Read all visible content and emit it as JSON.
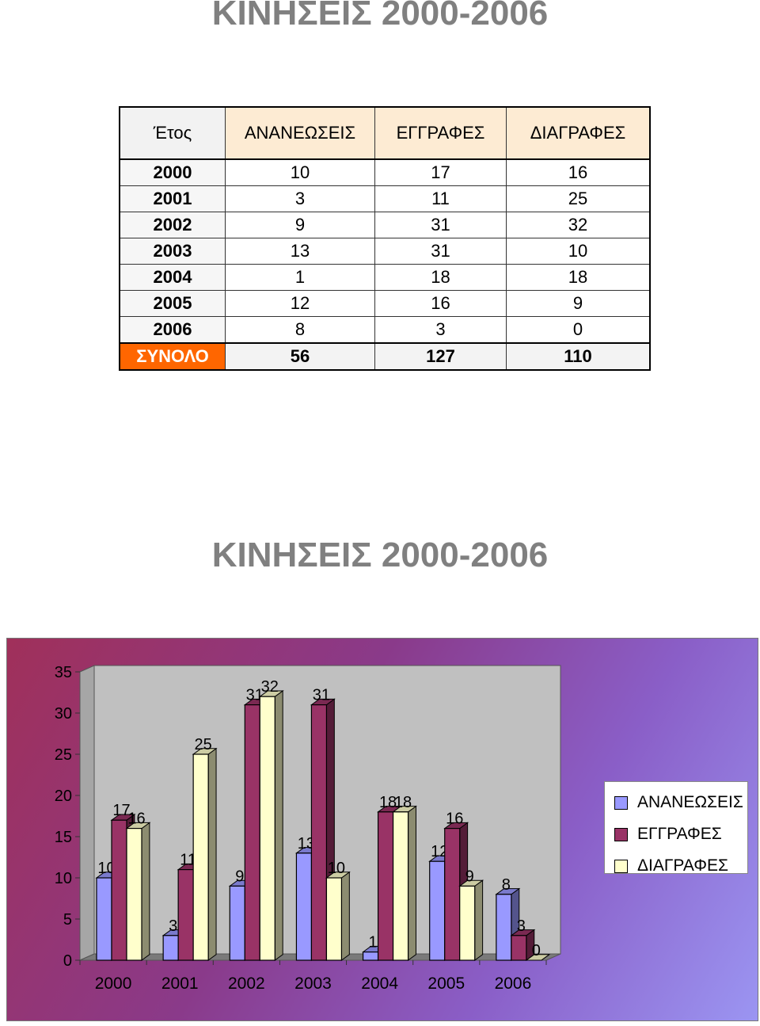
{
  "title_top": "ΚΙΝΗΣΕΙΣ 2000-2006",
  "table": {
    "headers": [
      "Έτος",
      "ΑΝΑΝΕΩΣΕΙΣ",
      "ΕΓΓΡΑΦΕΣ",
      "ΔΙΑΓΡΑΦΕΣ"
    ],
    "rows": [
      [
        "2000",
        "10",
        "17",
        "16"
      ],
      [
        "2001",
        "3",
        "11",
        "25"
      ],
      [
        "2002",
        "9",
        "31",
        "32"
      ],
      [
        "2003",
        "13",
        "31",
        "10"
      ],
      [
        "2004",
        "1",
        "18",
        "18"
      ],
      [
        "2005",
        "12",
        "16",
        "9"
      ],
      [
        "2006",
        "8",
        "3",
        "0"
      ]
    ],
    "total": [
      "ΣΥΝΟΛΟ",
      "56",
      "127",
      "110"
    ]
  },
  "chart_data": {
    "type": "bar",
    "title": "ΚΙΝΗΣΕΙΣ 2000-2006",
    "categories": [
      "2000",
      "2001",
      "2002",
      "2003",
      "2004",
      "2005",
      "2006"
    ],
    "series": [
      {
        "name": "ΑΝΑΝΕΩΣΕΙΣ",
        "values": [
          10,
          3,
          9,
          13,
          1,
          12,
          8
        ],
        "color": "#9999ff"
      },
      {
        "name": "ΕΓΓΡΑΦΕΣ",
        "values": [
          17,
          11,
          31,
          31,
          18,
          16,
          3
        ],
        "color": "#993366"
      },
      {
        "name": "ΔΙΑΓΡΑΦΕΣ",
        "values": [
          16,
          25,
          32,
          10,
          18,
          9,
          0
        ],
        "color": "#ffffcc"
      }
    ],
    "y_ticks": [
      "0",
      "5",
      "10",
      "15",
      "20",
      "25",
      "30",
      "35"
    ],
    "ylim": [
      0,
      35
    ],
    "data_labels": true,
    "grid": false,
    "legend": "right",
    "style": "3d-clustered"
  }
}
